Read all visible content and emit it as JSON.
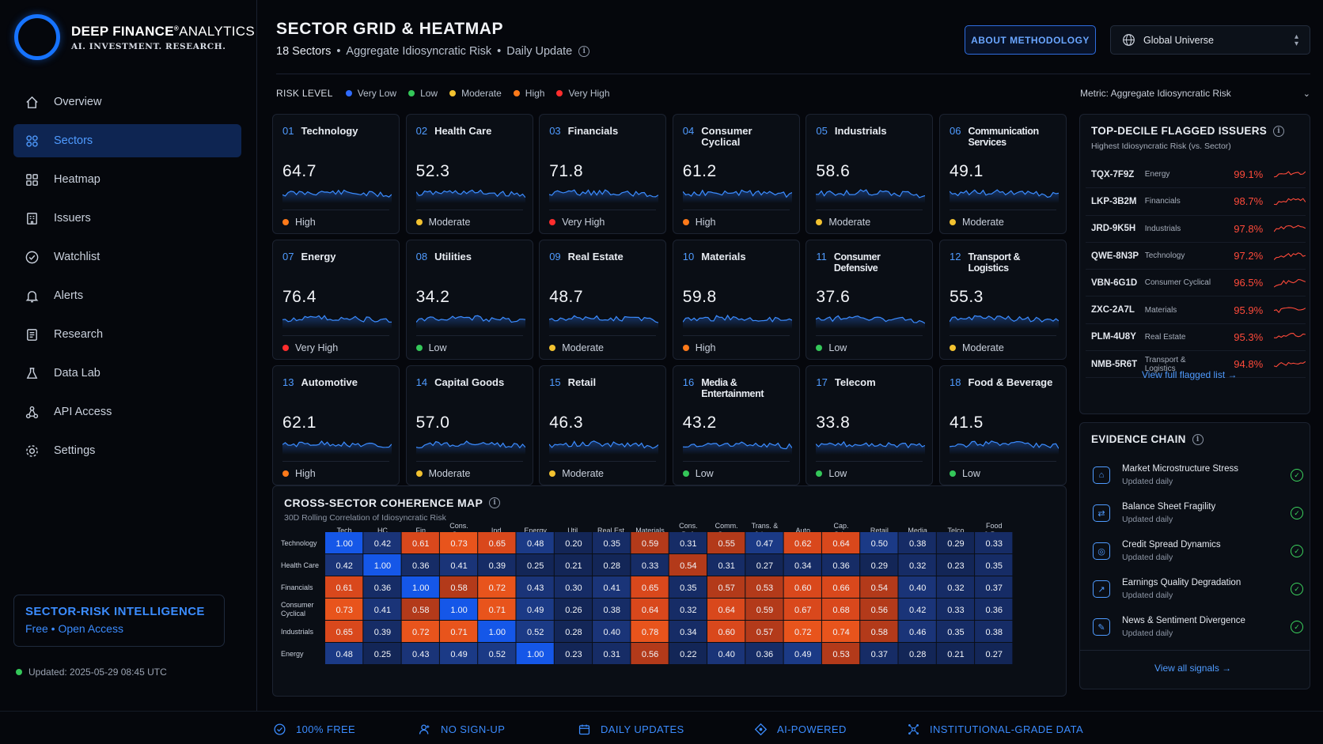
{
  "brand": {
    "name_bold": "DEEP FINANCE",
    "name_reg": "ANALYTICS",
    "reg_mark": "®",
    "tagline": "AI. INVESTMENT. RESEARCH."
  },
  "nav": [
    {
      "label": "Overview",
      "icon": "home-icon"
    },
    {
      "label": "Sectors",
      "icon": "grid-icon",
      "active": true
    },
    {
      "label": "Heatmap",
      "icon": "heatmap-icon"
    },
    {
      "label": "Issuers",
      "icon": "building-icon"
    },
    {
      "label": "Watchlist",
      "icon": "eye-icon"
    },
    {
      "label": "Alerts",
      "icon": "bell-icon"
    },
    {
      "label": "Research",
      "icon": "document-icon"
    },
    {
      "label": "Data Lab",
      "icon": "flask-icon"
    },
    {
      "label": "API Access",
      "icon": "nodes-icon"
    },
    {
      "label": "Settings",
      "icon": "gear-icon"
    }
  ],
  "promo": {
    "title": "SECTOR-RISK INTELLIGENCE",
    "subtitle": "Free • Open Access"
  },
  "updated": "Updated: 2025-05-29 08:45 UTC",
  "header": {
    "title": "SECTOR GRID & HEATMAP",
    "count": "18 Sectors",
    "sep": "•",
    "metric": "Aggregate Idiosyncratic Risk",
    "frequency": "Daily Update",
    "methodology_button": "ABOUT METHODOLOGY",
    "universe": "Global Universe"
  },
  "legend": {
    "label": "RISK LEVEL",
    "items": [
      {
        "label": "Very Low",
        "color": "#2f6bff"
      },
      {
        "label": "Low",
        "color": "#34c759"
      },
      {
        "label": "Moderate",
        "color": "#f2c230"
      },
      {
        "label": "High",
        "color": "#ff7a1a"
      },
      {
        "label": "Very High",
        "color": "#ff2d2d"
      }
    ]
  },
  "metric_select": "Metric: Aggregate Idiosyncratic Risk",
  "sectors": [
    {
      "num": "01",
      "name": "Technology",
      "value": "64.7",
      "level": "High",
      "color": "#ff7a1a"
    },
    {
      "num": "02",
      "name": "Health Care",
      "value": "52.3",
      "level": "Moderate",
      "color": "#f2c230"
    },
    {
      "num": "03",
      "name": "Financials",
      "value": "71.8",
      "level": "Very High",
      "color": "#ff2d2d"
    },
    {
      "num": "04",
      "name": "Consumer Cyclical",
      "value": "61.2",
      "level": "High",
      "color": "#ff7a1a"
    },
    {
      "num": "05",
      "name": "Industrials",
      "value": "58.6",
      "level": "Moderate",
      "color": "#f2c230"
    },
    {
      "num": "06",
      "name": "Communication Services",
      "value": "49.1",
      "level": "Moderate",
      "color": "#f2c230"
    },
    {
      "num": "07",
      "name": "Energy",
      "value": "76.4",
      "level": "Very High",
      "color": "#ff2d2d"
    },
    {
      "num": "08",
      "name": "Utilities",
      "value": "34.2",
      "level": "Low",
      "color": "#34c759"
    },
    {
      "num": "09",
      "name": "Real Estate",
      "value": "48.7",
      "level": "Moderate",
      "color": "#f2c230"
    },
    {
      "num": "10",
      "name": "Materials",
      "value": "59.8",
      "level": "High",
      "color": "#ff7a1a"
    },
    {
      "num": "11",
      "name": "Consumer Defensive",
      "value": "37.6",
      "level": "Low",
      "color": "#34c759"
    },
    {
      "num": "12",
      "name": "Transport & Logistics",
      "value": "55.3",
      "level": "Moderate",
      "color": "#f2c230"
    },
    {
      "num": "13",
      "name": "Automotive",
      "value": "62.1",
      "level": "High",
      "color": "#ff7a1a"
    },
    {
      "num": "14",
      "name": "Capital Goods",
      "value": "57.0",
      "level": "Moderate",
      "color": "#f2c230"
    },
    {
      "num": "15",
      "name": "Retail",
      "value": "46.3",
      "level": "Moderate",
      "color": "#f2c230"
    },
    {
      "num": "16",
      "name": "Media & Entertainment",
      "value": "43.2",
      "level": "Low",
      "color": "#34c759"
    },
    {
      "num": "17",
      "name": "Telecom",
      "value": "33.8",
      "level": "Low",
      "color": "#34c759"
    },
    {
      "num": "18",
      "name": "Food & Beverage",
      "value": "41.5",
      "level": "Low",
      "color": "#34c759"
    }
  ],
  "heatmap": {
    "title": "CROSS-SECTOR COHERENCE MAP",
    "subtitle": "30D Rolling Correlation of Idiosyncratic Risk",
    "columns": [
      "Tech",
      "HC",
      "Fin",
      "Cons.\nCyc.",
      "Ind.",
      "Energy",
      "Util.",
      "Real Est.",
      "Materials",
      "Cons.\nDef.",
      "Comm.\nSvcs.",
      "Trans. &\n& Log.",
      "Auto",
      "Cap.\nGds.",
      "Retail",
      "Media",
      "Telco",
      "Food\n& Bev."
    ],
    "rows": [
      "Technology",
      "Health Care",
      "Financials",
      "Consumer\nCyclical",
      "Industrials",
      "Energy"
    ],
    "values": [
      [
        1.0,
        0.42,
        0.61,
        0.73,
        0.65,
        0.48,
        0.2,
        0.35,
        0.59,
        0.31,
        0.55,
        0.47,
        0.62,
        0.64,
        0.5,
        0.38,
        0.29,
        0.33
      ],
      [
        0.42,
        1.0,
        0.36,
        0.41,
        0.39,
        0.25,
        0.21,
        0.28,
        0.33,
        0.54,
        0.31,
        0.27,
        0.34,
        0.36,
        0.29,
        0.32,
        0.23,
        0.35
      ],
      [
        0.61,
        0.36,
        1.0,
        0.58,
        0.72,
        0.43,
        0.3,
        0.41,
        0.65,
        0.35,
        0.57,
        0.53,
        0.6,
        0.66,
        0.54,
        0.4,
        0.32,
        0.37
      ],
      [
        0.73,
        0.41,
        0.58,
        1.0,
        0.71,
        0.49,
        0.26,
        0.38,
        0.64,
        0.32,
        0.64,
        0.59,
        0.67,
        0.68,
        0.56,
        0.42,
        0.33,
        0.36
      ],
      [
        0.65,
        0.39,
        0.72,
        0.71,
        1.0,
        0.52,
        0.28,
        0.4,
        0.78,
        0.34,
        0.6,
        0.57,
        0.72,
        0.74,
        0.58,
        0.46,
        0.35,
        0.38
      ],
      [
        0.48,
        0.25,
        0.43,
        0.49,
        0.52,
        1.0,
        0.23,
        0.31,
        0.56,
        0.22,
        0.4,
        0.36,
        0.49,
        0.53,
        0.37,
        0.28,
        0.21,
        0.27
      ]
    ]
  },
  "flagged": {
    "title": "TOP-DECILE FLAGGED ISSUERS",
    "subtitle": "Highest Idiosyncratic Risk (vs. Sector)",
    "rows": [
      {
        "id": "TQX-7F9Z",
        "sector": "Energy",
        "pct": "99.1%"
      },
      {
        "id": "LKP-3B2M",
        "sector": "Financials",
        "pct": "98.7%"
      },
      {
        "id": "JRD-9K5H",
        "sector": "Industrials",
        "pct": "97.8%"
      },
      {
        "id": "QWE-8N3P",
        "sector": "Technology",
        "pct": "97.2%"
      },
      {
        "id": "VBN-6G1D",
        "sector": "Consumer Cyclical",
        "pct": "96.5%"
      },
      {
        "id": "ZXC-2A7L",
        "sector": "Materials",
        "pct": "95.9%"
      },
      {
        "id": "PLM-4U8Y",
        "sector": "Real Estate",
        "pct": "95.3%"
      },
      {
        "id": "NMB-5R6T",
        "sector": "Transport & Logistics",
        "pct": "94.8%"
      }
    ],
    "link": "View full flagged list →"
  },
  "evidence": {
    "title": "EVIDENCE CHAIN",
    "rows": [
      {
        "name": "Market Microstructure Stress",
        "updated": "Updated daily",
        "icon": "stress-icon"
      },
      {
        "name": "Balance Sheet Fragility",
        "updated": "Updated daily",
        "icon": "balance-icon"
      },
      {
        "name": "Credit Spread Dynamics",
        "updated": "Updated daily",
        "icon": "credit-icon"
      },
      {
        "name": "Earnings Quality Degradation",
        "updated": "Updated daily",
        "icon": "earnings-icon"
      },
      {
        "name": "News & Sentiment Divergence",
        "updated": "Updated daily",
        "icon": "news-icon"
      }
    ],
    "link": "View all signals →"
  },
  "footer": [
    {
      "label": "100% FREE",
      "icon": "check-circle-icon"
    },
    {
      "label": "NO SIGN-UP",
      "icon": "user-icon"
    },
    {
      "label": "DAILY UPDATES",
      "icon": "calendar-icon"
    },
    {
      "label": "AI-POWERED",
      "icon": "chip-icon"
    },
    {
      "label": "INSTITUTIONAL-GRADE DATA",
      "icon": "network-icon"
    }
  ]
}
